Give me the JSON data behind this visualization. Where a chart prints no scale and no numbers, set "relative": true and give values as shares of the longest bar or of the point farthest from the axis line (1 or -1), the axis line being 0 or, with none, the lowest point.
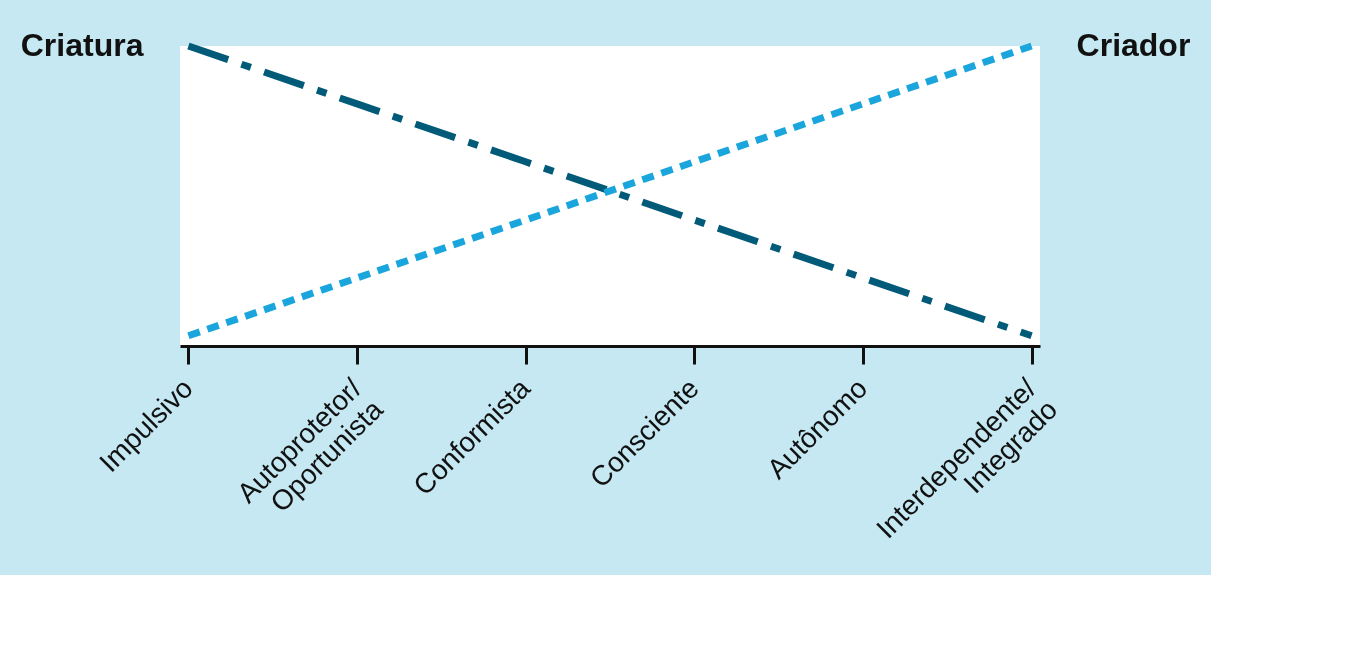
{
  "chart_data": {
    "type": "line",
    "relative": true,
    "categories": [
      "Impulsivo",
      "Autoprotetor/\nOportunista",
      "Conformista",
      "Consciente",
      "Autônomo",
      "Interdependente/\nIntegrado"
    ],
    "series": [
      {
        "name": "Criatura",
        "color": "#005a78",
        "line_style": "dashed",
        "values": [
          1,
          0.807,
          0.614,
          0.42,
          0.227,
          0.034
        ]
      },
      {
        "name": "Criador",
        "color": "#1aa6dc",
        "line_style": "dotted",
        "values": [
          0.034,
          0.227,
          0.42,
          0.614,
          0.807,
          1
        ]
      }
    ],
    "grid": false,
    "marker": "none"
  }
}
